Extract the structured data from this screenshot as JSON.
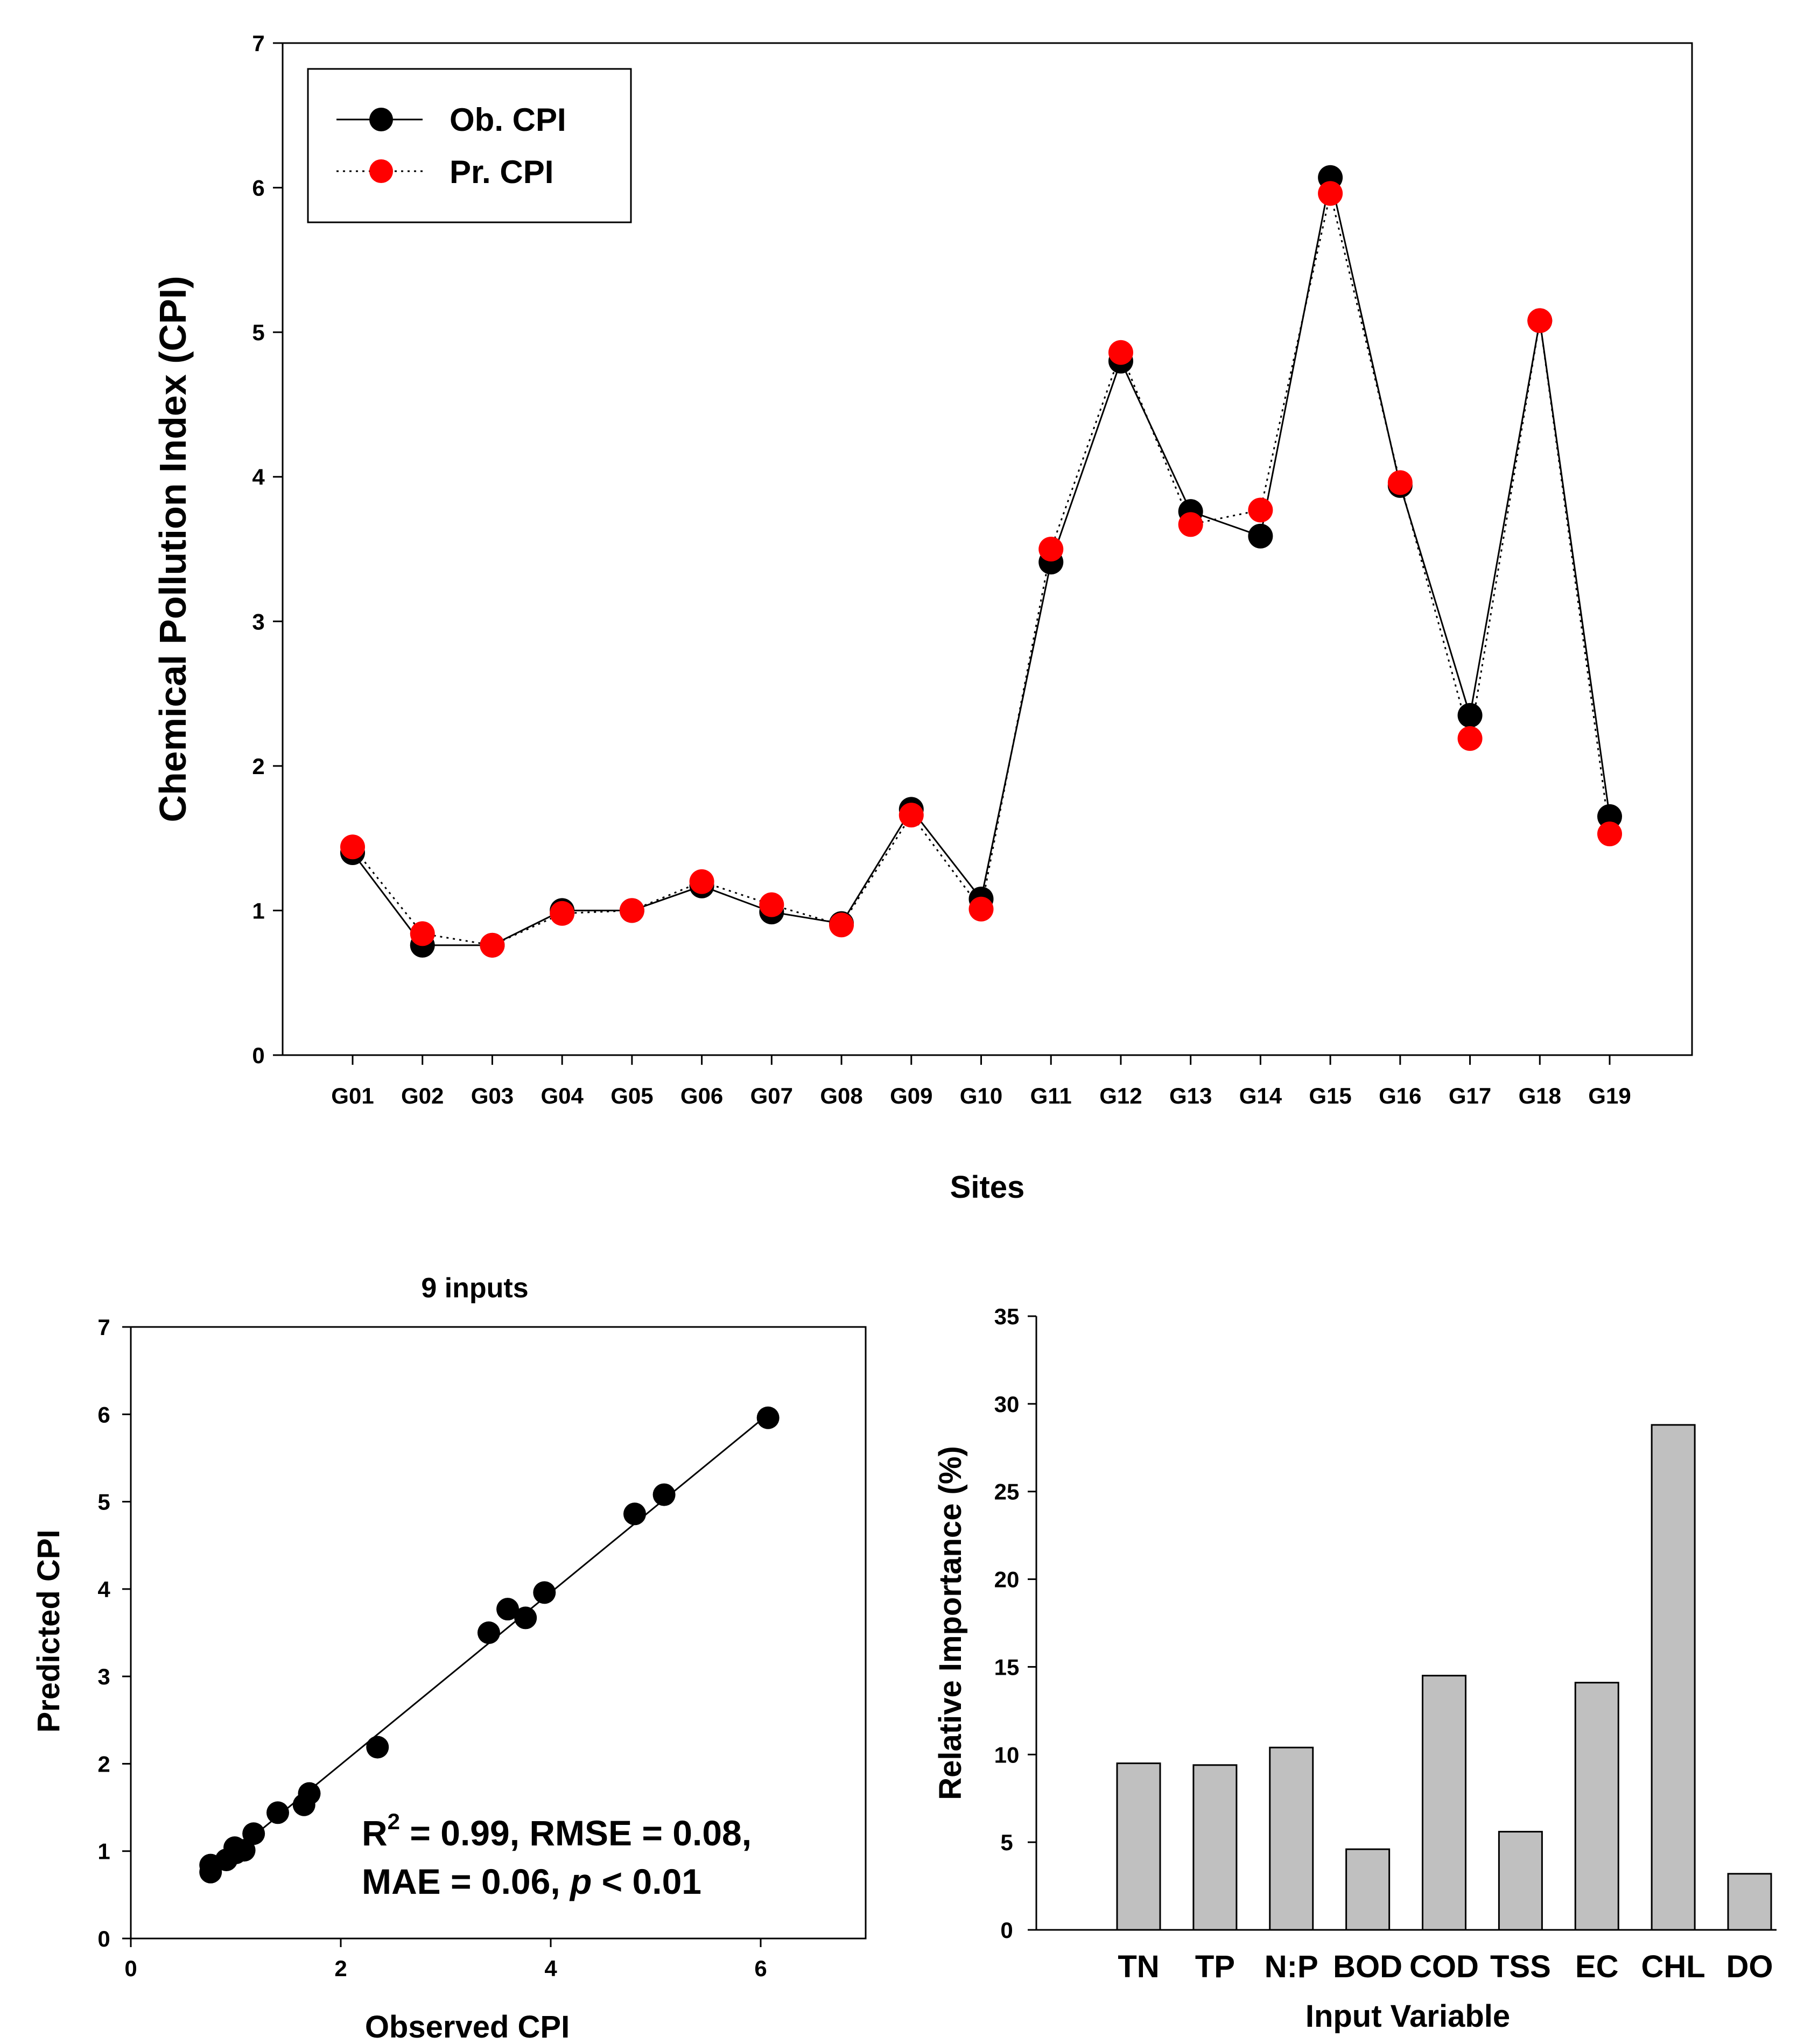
{
  "chart_data": [
    {
      "type": "line",
      "xlabel": "Sites",
      "ylabel": "Chemical Pollution Index (CPI)",
      "ylim": [
        0,
        7
      ],
      "yticks": [
        0,
        1,
        2,
        3,
        4,
        5,
        6,
        7
      ],
      "categories": [
        "G01",
        "G02",
        "G03",
        "G04",
        "G05",
        "G06",
        "G07",
        "G08",
        "G09",
        "G10",
        "G11",
        "G12",
        "G13",
        "G14",
        "G15",
        "G16",
        "G17",
        "G18",
        "G19"
      ],
      "legend_position": "top-left",
      "series": [
        {
          "name": "Ob. CPI",
          "color": "#000000",
          "line": "solid",
          "values": [
            1.4,
            0.76,
            0.76,
            1.0,
            1.0,
            1.17,
            0.99,
            0.91,
            1.7,
            1.08,
            3.41,
            4.8,
            3.76,
            3.59,
            6.07,
            3.94,
            2.35,
            5.08,
            1.65
          ]
        },
        {
          "name": "Pr. CPI",
          "color": "#ff0000",
          "line": "dotted",
          "values": [
            1.44,
            0.84,
            0.76,
            0.98,
            1.0,
            1.2,
            1.04,
            0.9,
            1.66,
            1.01,
            3.5,
            4.86,
            3.67,
            3.77,
            5.96,
            3.96,
            2.19,
            5.08,
            1.53
          ]
        }
      ]
    },
    {
      "type": "scatter",
      "title": "9 inputs",
      "xlabel": "Observed CPI",
      "ylabel": "Predicted CPI",
      "xlim": [
        0,
        7
      ],
      "ylim": [
        0,
        7
      ],
      "xticks": [
        0,
        2,
        4,
        6
      ],
      "yticks": [
        0,
        1,
        2,
        3,
        4,
        5,
        6,
        7
      ],
      "x": [
        1.4,
        0.76,
        0.76,
        1.0,
        1.0,
        1.17,
        0.99,
        0.91,
        1.7,
        1.08,
        3.41,
        4.8,
        3.76,
        3.59,
        6.07,
        3.94,
        2.35,
        5.08,
        1.65
      ],
      "y": [
        1.44,
        0.84,
        0.76,
        0.98,
        1.0,
        1.2,
        1.04,
        0.9,
        1.66,
        1.01,
        3.5,
        4.86,
        3.67,
        3.77,
        5.96,
        3.96,
        2.19,
        5.08,
        1.53
      ],
      "fit_line": {
        "x": [
          0.76,
          6.07
        ],
        "y": [
          0.77,
          6.0
        ]
      },
      "annotation": {
        "line1_prefix": "R",
        "line1_sup": "2",
        "line1_rest": " = 0.99, RMSE = 0.08,",
        "line2_prefix": "MAE = 0.06, ",
        "line2_italic": "p",
        "line2_rest": " < 0.01"
      }
    },
    {
      "type": "bar",
      "xlabel": "Input Variable",
      "ylabel": "Relative Importance (%)",
      "ylim": [
        0,
        35
      ],
      "yticks": [
        0,
        5,
        10,
        15,
        20,
        25,
        30,
        35
      ],
      "categories": [
        "TN",
        "TP",
        "N:P",
        "BOD",
        "COD",
        "TSS",
        "EC",
        "CHL",
        "DO"
      ],
      "values": [
        9.5,
        9.4,
        10.4,
        4.6,
        14.5,
        5.6,
        14.1,
        28.8,
        3.2
      ],
      "bar_color": "#c0c0c0"
    }
  ]
}
